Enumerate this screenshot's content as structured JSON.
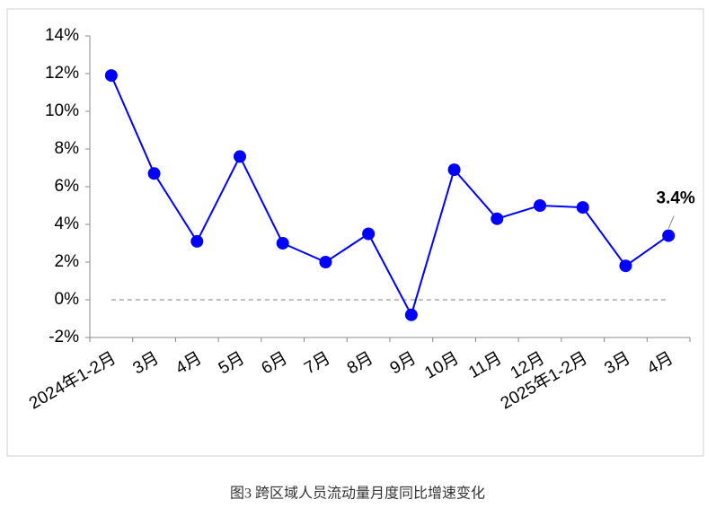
{
  "chart_data": {
    "type": "line",
    "caption": "图3 跨区域人员流动量月度同比增速变化",
    "categories": [
      "2024年1-2月",
      "3月",
      "4月",
      "5月",
      "6月",
      "7月",
      "8月",
      "9月",
      "10月",
      "11月",
      "12月",
      "2025年1-2月",
      "3月",
      "4月"
    ],
    "values": [
      11.9,
      6.7,
      3.1,
      7.6,
      3.0,
      2.0,
      3.5,
      -0.8,
      6.9,
      4.3,
      5.0,
      4.9,
      1.8,
      3.4
    ],
    "value_labels": [
      null,
      null,
      null,
      null,
      null,
      null,
      null,
      null,
      null,
      null,
      null,
      null,
      null,
      "3.4%"
    ],
    "color": "#0000ff",
    "ylim": [
      -2,
      14
    ],
    "yticks": [
      {
        "value": -2,
        "label": "-2%"
      },
      {
        "value": 0,
        "label": "0%"
      },
      {
        "value": 2,
        "label": "2%"
      },
      {
        "value": 4,
        "label": "4%"
      },
      {
        "value": 6,
        "label": "6%"
      },
      {
        "value": 8,
        "label": "8%"
      },
      {
        "value": 10,
        "label": "10%"
      },
      {
        "value": 12,
        "label": "12%"
      },
      {
        "value": 14,
        "label": "14%"
      }
    ],
    "zero_line": true
  }
}
